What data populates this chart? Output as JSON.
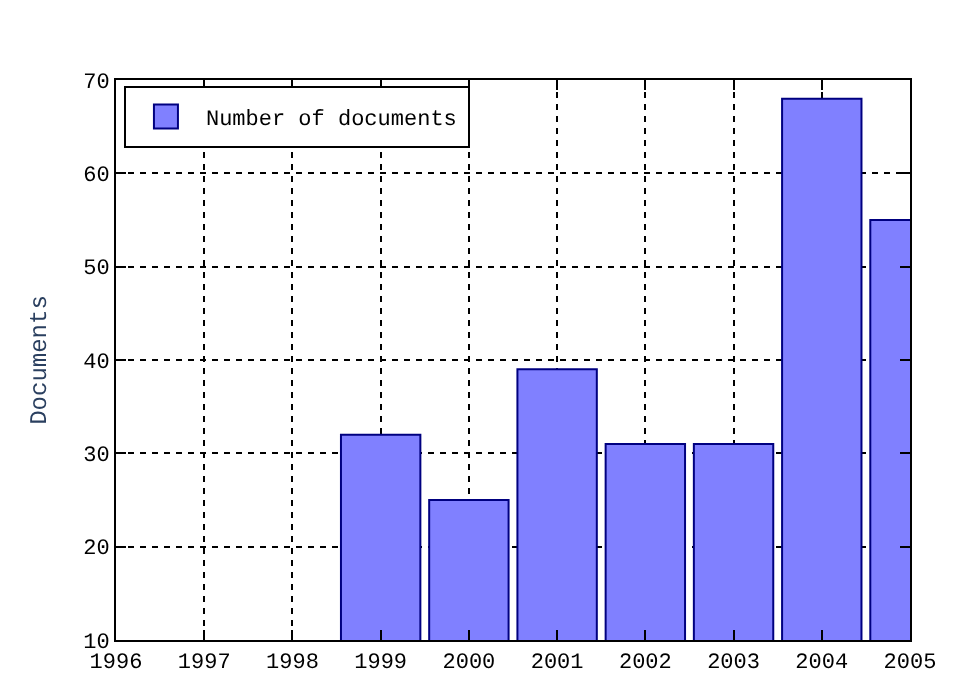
{
  "chart_data": {
    "type": "bar",
    "ylabel": "Documents",
    "x": [
      1999,
      2000,
      2001,
      2002,
      2003,
      2004,
      2005
    ],
    "series": [
      {
        "name": "Number of documents",
        "color": "#8080ff",
        "values": [
          32,
          25,
          39,
          31,
          31,
          68,
          55
        ]
      }
    ],
    "xlim": [
      1996,
      2005
    ],
    "xticks": [
      1996,
      1997,
      1998,
      1999,
      2000,
      2001,
      2002,
      2003,
      2004,
      2005
    ],
    "ylim": [
      10,
      70
    ],
    "yticks": [
      10,
      20,
      30,
      40,
      50,
      60,
      70
    ],
    "grid": true,
    "legend": "top left"
  }
}
